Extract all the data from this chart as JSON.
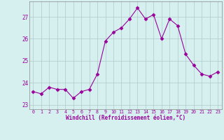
{
  "x": [
    0,
    1,
    2,
    3,
    4,
    5,
    6,
    7,
    8,
    9,
    10,
    11,
    12,
    13,
    14,
    15,
    16,
    17,
    18,
    19,
    20,
    21,
    22,
    23
  ],
  "y": [
    23.6,
    23.5,
    23.8,
    23.7,
    23.7,
    23.3,
    23.6,
    23.7,
    24.4,
    25.9,
    26.3,
    26.5,
    26.9,
    27.4,
    26.9,
    27.1,
    26.0,
    26.9,
    26.6,
    25.3,
    24.8,
    24.4,
    24.3,
    24.5
  ],
  "line_color": "#990099",
  "marker": "D",
  "marker_size": 2.5,
  "bg_color": "#d6f0f0",
  "grid_color": "#b0c8c8",
  "xlabel": "Windchill (Refroidissement éolien,°C)",
  "xlabel_color": "#990099",
  "tick_color": "#990099",
  "ylim": [
    22.8,
    27.7
  ],
  "yticks": [
    23,
    24,
    25,
    26,
    27
  ],
  "xticks": [
    0,
    1,
    2,
    3,
    4,
    5,
    6,
    7,
    8,
    9,
    10,
    11,
    12,
    13,
    14,
    15,
    16,
    17,
    18,
    19,
    20,
    21,
    22,
    23
  ]
}
